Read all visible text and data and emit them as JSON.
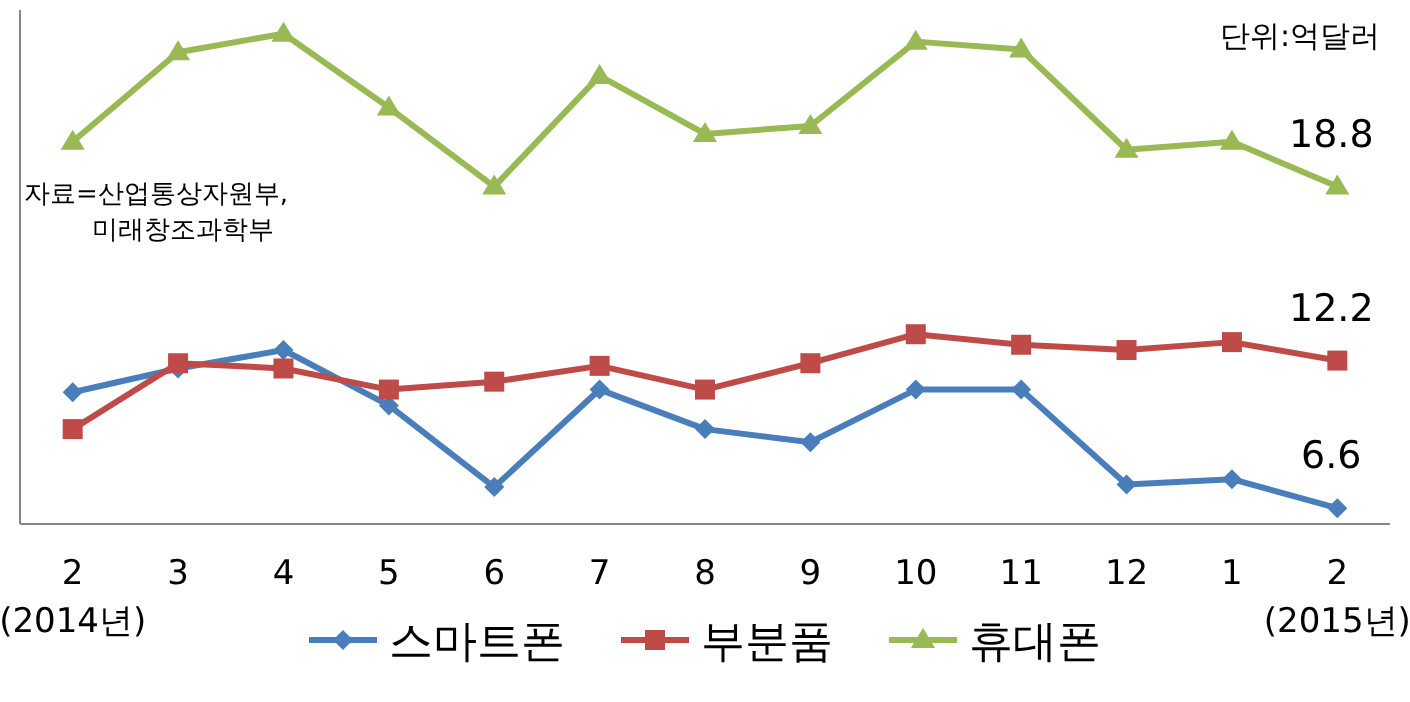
{
  "chart_data": {
    "type": "line",
    "categories": [
      "2\n(2014년)",
      "3",
      "4",
      "5",
      "6",
      "7",
      "8",
      "9",
      "10",
      "11",
      "12",
      "1",
      "2\n(2015년)"
    ],
    "ylim": [
      6.0,
      25.5
    ],
    "series": [
      {
        "name": "스마트폰",
        "color": "#4a7ebb",
        "marker": "diamond",
        "values": [
          11.0,
          11.9,
          12.6,
          10.5,
          7.4,
          11.1,
          9.6,
          9.1,
          11.1,
          11.1,
          7.5,
          7.7,
          6.6
        ],
        "value_labels": [
          null,
          null,
          null,
          null,
          null,
          null,
          null,
          null,
          null,
          null,
          null,
          null,
          "6.6"
        ]
      },
      {
        "name": "부분품",
        "color": "#be4b48",
        "marker": "square",
        "values": [
          9.6,
          12.1,
          11.9,
          11.1,
          11.4,
          12.0,
          11.1,
          12.1,
          13.2,
          12.8,
          12.6,
          12.9,
          12.2
        ],
        "value_labels": [
          null,
          null,
          null,
          null,
          null,
          null,
          null,
          null,
          null,
          null,
          null,
          null,
          "12.2"
        ]
      },
      {
        "name": "휴대폰",
        "color": "#98b954",
        "marker": "triangle",
        "values": [
          20.5,
          23.9,
          24.6,
          21.8,
          18.8,
          23.0,
          20.8,
          21.1,
          24.3,
          24.0,
          20.2,
          20.5,
          18.8
        ],
        "value_labels": [
          null,
          null,
          null,
          null,
          null,
          null,
          null,
          null,
          null,
          null,
          null,
          null,
          "18.8"
        ]
      }
    ],
    "annotations": [
      "단위:억달러",
      "자료=산업통상자원부,\n미래창조과학부"
    ],
    "legend": "bottom",
    "line_style": "solid",
    "grid": false
  }
}
